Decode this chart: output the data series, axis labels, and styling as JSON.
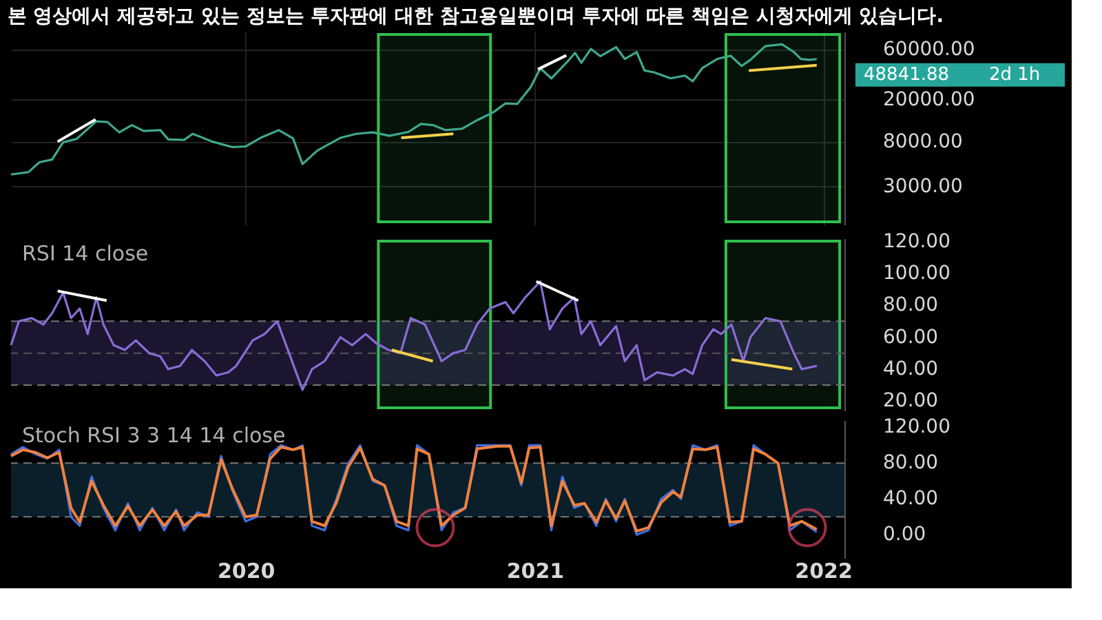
{
  "chart_data": [
    {
      "type": "line",
      "title": "본 영상에서 제공하고 있는 정보는 투자판에 대한 참고용일뿐이며 투자에 따른 책임은 시청자에게 있습니다.",
      "log": "y",
      "grid": true,
      "tick_labels": "y",
      "xlim": [
        "2019-03-10",
        "2022-01-28"
      ],
      "xticks": [
        "2020",
        "2021",
        "2022"
      ],
      "ylim": [
        1300,
        89000
      ],
      "yticks": [
        {
          "value": 3000,
          "label": "3000.00"
        },
        {
          "value": 8000,
          "label": "8000.00"
        },
        {
          "value": 20000,
          "label": "20000.00"
        },
        {
          "value": 60000,
          "label": "60000.00"
        }
      ],
      "series": [
        {
          "color": "#3fa88e",
          "x": [
            "2019-03-10",
            "2019-04-01",
            "2019-04-15",
            "2019-05-01",
            "2019-05-15",
            "2019-06-01",
            "2019-06-26",
            "2019-07-10",
            "2019-07-25",
            "2019-08-10",
            "2019-08-25",
            "2019-09-15",
            "2019-09-25",
            "2019-10-15",
            "2019-10-26",
            "2019-11-20",
            "2019-12-15",
            "2020-01-01",
            "2020-01-20",
            "2020-02-12",
            "2020-03-01",
            "2020-03-13",
            "2020-04-01",
            "2020-04-30",
            "2020-05-20",
            "2020-06-10",
            "2020-07-01",
            "2020-07-25",
            "2020-08-10",
            "2020-08-25",
            "2020-09-10",
            "2020-10-01",
            "2020-10-21",
            "2020-11-10",
            "2020-11-25",
            "2020-12-10",
            "2020-12-27",
            "2021-01-08",
            "2021-01-22",
            "2021-02-10",
            "2021-02-21",
            "2021-03-01",
            "2021-03-13",
            "2021-03-25",
            "2021-04-14",
            "2021-04-25",
            "2021-05-10",
            "2021-05-20",
            "2021-06-01",
            "2021-06-22",
            "2021-07-10",
            "2021-07-20",
            "2021-08-01",
            "2021-08-20",
            "2021-09-06",
            "2021-09-20",
            "2021-10-01",
            "2021-10-20",
            "2021-11-10",
            "2021-11-25",
            "2021-12-04",
            "2021-12-15",
            "2021-12-24"
          ],
          "values": [
            3900,
            4100,
            5100,
            5400,
            7900,
            8500,
            12500,
            12300,
            9800,
            11500,
            10100,
            10300,
            8400,
            8300,
            9500,
            8000,
            7100,
            7200,
            8700,
            10300,
            8600,
            4900,
            6600,
            8700,
            9500,
            9800,
            9100,
            9900,
            11800,
            11500,
            10300,
            10600,
            12900,
            15300,
            18500,
            18300,
            26500,
            40000,
            32000,
            45000,
            56000,
            45000,
            61000,
            52000,
            63500,
            49000,
            57000,
            38000,
            36500,
            32000,
            34000,
            30000,
            40000,
            49000,
            52500,
            42000,
            48000,
            65000,
            67500,
            57000,
            49000,
            48000,
            48841.88
          ]
        },
        {
          "type": "line",
          "color": "#ffffff",
          "x": [
            "2019-05-08",
            "2019-06-25"
          ],
          "values": [
            8000,
            13000
          ]
        },
        {
          "type": "line",
          "color": "#ffffff",
          "x": [
            "2021-01-05",
            "2021-02-10"
          ],
          "values": [
            39000,
            53000
          ]
        },
        {
          "type": "line",
          "color": "#f2d04a",
          "x": [
            "2020-07-16",
            "2020-09-20"
          ],
          "values": [
            8700,
            9500
          ]
        },
        {
          "type": "line",
          "color": "#f2d04a",
          "x": [
            "2021-09-29",
            "2021-12-24"
          ],
          "values": [
            38000,
            42700
          ]
        }
      ],
      "bands": [
        {
          "axis": "x",
          "from": "2020-06-17",
          "to": "2020-11-06",
          "color": "#2fbf4f"
        },
        {
          "axis": "x",
          "from": "2021-08-31",
          "to": "2022-01-22",
          "color": "#2fbf4f"
        }
      ],
      "annotations": [
        {
          "text": "48841.88",
          "x": "2021-12-24",
          "y": 48841.88
        },
        "2d 1h"
      ]
    },
    {
      "type": "line",
      "title": "RSI 14 close",
      "grid": false,
      "tick_labels": "y",
      "xlim": [
        "2019-03-10",
        "2022-01-28"
      ],
      "xticks": [
        "2020",
        "2021",
        "2022"
      ],
      "ylim": [
        14,
        122
      ],
      "yticks": [
        {
          "value": 20,
          "label": "20.00"
        },
        {
          "value": 40,
          "label": "40.00"
        },
        {
          "value": 60,
          "label": "60.00"
        },
        {
          "value": 80,
          "label": "80.00"
        },
        {
          "value": 100,
          "label": "100.00"
        },
        {
          "value": 120,
          "label": "120.00"
        }
      ],
      "series": [
        {
          "color": "#8a6cd6",
          "x": [
            "2019-03-10",
            "2019-03-20",
            "2019-04-05",
            "2019-04-20",
            "2019-05-01",
            "2019-05-15",
            "2019-05-25",
            "2019-06-05",
            "2019-06-15",
            "2019-06-26",
            "2019-07-05",
            "2019-07-18",
            "2019-08-01",
            "2019-08-15",
            "2019-09-01",
            "2019-09-15",
            "2019-09-25",
            "2019-10-10",
            "2019-10-25",
            "2019-11-10",
            "2019-11-25",
            "2019-12-10",
            "2019-12-20",
            "2020-01-10",
            "2020-01-25",
            "2020-02-10",
            "2020-02-25",
            "2020-03-13",
            "2020-03-25",
            "2020-04-10",
            "2020-04-30",
            "2020-05-15",
            "2020-06-01",
            "2020-06-15",
            "2020-06-30",
            "2020-07-15",
            "2020-07-28",
            "2020-08-15",
            "2020-09-05",
            "2020-09-20",
            "2020-10-05",
            "2020-10-20",
            "2020-11-05",
            "2020-11-25",
            "2020-12-05",
            "2020-12-20",
            "2021-01-08",
            "2021-01-20",
            "2021-02-05",
            "2021-02-20",
            "2021-03-01",
            "2021-03-13",
            "2021-03-25",
            "2021-04-14",
            "2021-04-25",
            "2021-05-10",
            "2021-05-20",
            "2021-06-05",
            "2021-06-25",
            "2021-07-10",
            "2021-07-20",
            "2021-08-01",
            "2021-08-15",
            "2021-08-25",
            "2021-09-07",
            "2021-09-22",
            "2021-10-01",
            "2021-10-20",
            "2021-11-08",
            "2021-11-25",
            "2021-12-05",
            "2021-12-24"
          ],
          "values": [
            55,
            70,
            72,
            68,
            75,
            88,
            72,
            78,
            62,
            85,
            68,
            55,
            52,
            58,
            50,
            48,
            40,
            42,
            52,
            45,
            36,
            38,
            42,
            58,
            62,
            70,
            50,
            27,
            40,
            45,
            60,
            55,
            62,
            56,
            52,
            50,
            72,
            68,
            45,
            50,
            52,
            68,
            78,
            82,
            75,
            85,
            95,
            65,
            78,
            85,
            62,
            70,
            55,
            67,
            45,
            55,
            33,
            38,
            36,
            40,
            37,
            55,
            65,
            62,
            68,
            45,
            60,
            72,
            70,
            50,
            40,
            42
          ]
        },
        {
          "type": "line",
          "color": "#ffffff",
          "x": [
            "2019-05-08",
            "2019-07-09"
          ],
          "values": [
            89,
            83
          ]
        },
        {
          "type": "line",
          "color": "#ffffff",
          "x": [
            "2021-01-03",
            "2021-02-25"
          ],
          "values": [
            95,
            83
          ]
        },
        {
          "type": "line",
          "color": "#f2d04a",
          "x": [
            "2020-07-04",
            "2020-08-25"
          ],
          "values": [
            52,
            45
          ]
        },
        {
          "type": "line",
          "color": "#f2d04a",
          "x": [
            "2021-09-07",
            "2021-11-23"
          ],
          "values": [
            46,
            40
          ]
        }
      ],
      "bands": [
        {
          "axis": "y",
          "from": 30,
          "to": 70,
          "color": "#1c1530"
        },
        {
          "axis": "x",
          "from": "2020-06-17",
          "to": "2020-11-06",
          "color": "#2fbf4f"
        },
        {
          "axis": "x",
          "from": "2021-08-31",
          "to": "2022-01-22",
          "color": "#2fbf4f"
        }
      ],
      "ref_lines": [
        {
          "axis": "y",
          "value": 70,
          "color": "#777777",
          "line_style": "dashed"
        },
        {
          "axis": "y",
          "value": 50,
          "color": "#555555",
          "line_style": "dashed"
        },
        {
          "axis": "y",
          "value": 30,
          "color": "#777777",
          "line_style": "dashed"
        }
      ]
    },
    {
      "type": "line",
      "title": "Stoch RSI 3 3 14 14 close",
      "grid": false,
      "xlim": [
        "2019-03-10",
        "2022-01-28"
      ],
      "xticks": [
        "2020",
        "2021",
        "2022"
      ],
      "ylim": [
        -26,
        128
      ],
      "yticks": [
        {
          "value": 0,
          "label": "0.00"
        },
        {
          "value": 40,
          "label": "40.00"
        },
        {
          "value": 80,
          "label": "80.00"
        },
        {
          "value": 120,
          "label": "120.00"
        }
      ],
      "x": [
        "2019-03-10",
        "2019-03-25",
        "2019-04-10",
        "2019-04-25",
        "2019-05-10",
        "2019-05-25",
        "2019-06-05",
        "2019-06-20",
        "2019-07-05",
        "2019-07-20",
        "2019-08-05",
        "2019-08-20",
        "2019-09-05",
        "2019-09-20",
        "2019-10-05",
        "2019-10-15",
        "2019-11-01",
        "2019-11-15",
        "2019-12-01",
        "2019-12-15",
        "2020-01-01",
        "2020-01-15",
        "2020-02-01",
        "2020-02-15",
        "2020-03-01",
        "2020-03-13",
        "2020-03-25",
        "2020-04-10",
        "2020-04-25",
        "2020-05-10",
        "2020-05-25",
        "2020-06-10",
        "2020-06-25",
        "2020-07-10",
        "2020-07-25",
        "2020-08-05",
        "2020-08-20",
        "2020-09-05",
        "2020-09-20",
        "2020-10-05",
        "2020-10-20",
        "2020-11-15",
        "2020-12-01",
        "2020-12-15",
        "2020-12-25",
        "2021-01-08",
        "2021-01-22",
        "2021-02-05",
        "2021-02-20",
        "2021-03-05",
        "2021-03-20",
        "2021-04-01",
        "2021-04-14",
        "2021-04-25",
        "2021-05-10",
        "2021-05-25",
        "2021-06-10",
        "2021-06-25",
        "2021-07-05",
        "2021-07-20",
        "2021-08-05",
        "2021-08-20",
        "2021-09-05",
        "2021-09-20",
        "2021-10-05",
        "2021-10-20",
        "2021-11-05",
        "2021-11-20",
        "2021-12-05",
        "2021-12-24"
      ],
      "series": [
        {
          "color": "#3f6fe0",
          "values": [
            90,
            98,
            90,
            85,
            95,
            20,
            10,
            65,
            30,
            5,
            35,
            5,
            30,
            5,
            28,
            5,
            25,
            20,
            88,
            50,
            15,
            20,
            90,
            100,
            95,
            100,
            10,
            5,
            40,
            80,
            100,
            60,
            55,
            10,
            5,
            100,
            90,
            5,
            25,
            30,
            100,
            100,
            100,
            55,
            100,
            100,
            5,
            65,
            30,
            35,
            10,
            40,
            15,
            40,
            0,
            5,
            40,
            50,
            40,
            100,
            95,
            100,
            10,
            15,
            100,
            90,
            80,
            5,
            15,
            3
          ]
        },
        {
          "color": "#f0813c",
          "values": [
            88,
            95,
            92,
            86,
            92,
            30,
            14,
            60,
            33,
            10,
            32,
            10,
            28,
            10,
            26,
            10,
            22,
            22,
            84,
            52,
            20,
            22,
            85,
            98,
            95,
            98,
            15,
            10,
            36,
            76,
            97,
            62,
            55,
            15,
            10,
            96,
            90,
            10,
            22,
            30,
            96,
            99,
            99,
            58,
            97,
            98,
            10,
            60,
            33,
            35,
            14,
            38,
            18,
            38,
            4,
            8,
            36,
            48,
            42,
            96,
            95,
            98,
            14,
            15,
            96,
            90,
            80,
            10,
            15,
            6
          ]
        },
        {
          "type": "scatter",
          "color": "#e0405a",
          "marker": "circle",
          "x": [
            "2020-08-28",
            "2021-12-12"
          ],
          "values": [
            8,
            8
          ]
        }
      ],
      "bands": [
        {
          "axis": "y",
          "from": 20,
          "to": 80,
          "color": "#0b1f2b"
        }
      ],
      "ref_lines": [
        {
          "axis": "y",
          "value": 80,
          "color": "#777777",
          "line_style": "dashed"
        },
        {
          "axis": "y",
          "value": 20,
          "color": "#777777",
          "line_style": "dashed"
        }
      ]
    }
  ]
}
